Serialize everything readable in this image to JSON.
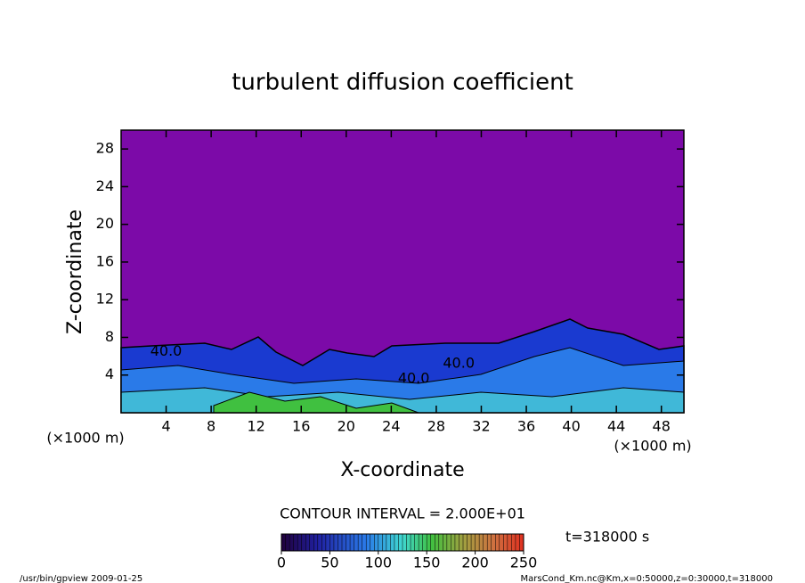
{
  "chart_data": {
    "type": "contour",
    "title": "turbulent diffusion coefficient",
    "x_label": "X-coordinate",
    "y_label": "Z-coordinate",
    "axis_unit_label": "(×1000 m)",
    "xlim": [
      0,
      50
    ],
    "ylim": [
      0,
      30
    ],
    "xticks": [
      4,
      8,
      12,
      16,
      20,
      24,
      28,
      32,
      36,
      40,
      44,
      48
    ],
    "yticks": [
      4,
      8,
      12,
      16,
      20,
      24,
      28
    ],
    "annotations": [
      {
        "text": "40.0",
        "x": 4,
        "y": 6.5
      },
      {
        "text": "40.0",
        "x": 30,
        "y": 5.2
      },
      {
        "text": "40.0",
        "x": 26,
        "y": 3.6
      }
    ],
    "contour_interval_label": "CONTOUR INTERVAL = 2.000E+01",
    "time_label": "t=318000 s",
    "colorbar": {
      "lim": [
        0,
        250
      ],
      "ticks": [
        0,
        50,
        100,
        150,
        200,
        250
      ]
    },
    "footer_left": "/usr/bin/gpview  2009-01-25",
    "footer_right": "MarsCond_Km.nc@Km,x=0:50000,z=0:30000,t=318000"
  }
}
